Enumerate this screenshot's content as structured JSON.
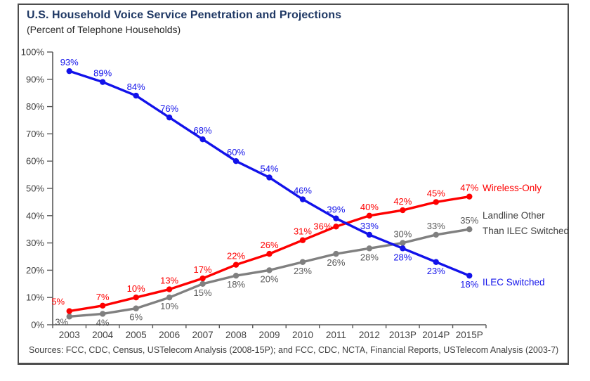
{
  "source_note": "Sources: FCC, CDC, Census, USTelecom Analysis (2008-15P); and FCC, CDC, NCTA, Financial Reports, USTelecom Analysis (2003-7)",
  "colors": {
    "title": "#1f3864",
    "axis_line": "#595959",
    "axis_text": "#404040",
    "blue": "#1212ea",
    "red": "#fe0000",
    "gray": "#808080"
  },
  "chart_data": {
    "type": "line",
    "title": "U.S. Household Voice Service Penetration and Projections",
    "subtitle": "(Percent of Telephone Households)",
    "categories": [
      "2003",
      "2004",
      "2005",
      "2006",
      "2007",
      "2008",
      "2009",
      "2010",
      "2011",
      "2012",
      "2013P",
      "2014P",
      "2015P"
    ],
    "y_tick_labels": [
      "0%",
      "10%",
      "20%",
      "30%",
      "40%",
      "50%",
      "60%",
      "70%",
      "80%",
      "90%",
      "100%"
    ],
    "ylim": [
      0,
      100
    ],
    "grid": false,
    "legend_position": "right",
    "series": [
      {
        "name": "Landline Other Than ILEC Switched",
        "color": "#808080",
        "label_color": "#595959",
        "values": [
          3,
          4,
          6,
          10,
          15,
          18,
          20,
          23,
          26,
          28,
          30,
          33,
          35
        ],
        "label_pos": [
          "below-left",
          "below",
          "below",
          "below",
          "below",
          "below",
          "below",
          "below",
          "below",
          "below",
          "above",
          "above",
          "above"
        ]
      },
      {
        "name": "Wireless-Only",
        "color": "#fe0000",
        "label_color": "#fe0000",
        "values": [
          5,
          7,
          10,
          13,
          17,
          22,
          26,
          31,
          36,
          40,
          42,
          45,
          47
        ],
        "label_pos": [
          "above-left",
          "above",
          "above",
          "above",
          "above",
          "above",
          "above",
          "above",
          "left",
          "above",
          "above",
          "above",
          "above"
        ]
      },
      {
        "name": "ILEC Switched",
        "color": "#1212ea",
        "label_color": "#1212ea",
        "values": [
          93,
          89,
          84,
          76,
          68,
          60,
          54,
          46,
          39,
          33,
          28,
          23,
          18
        ],
        "label_pos": [
          "above",
          "above",
          "above",
          "above",
          "above",
          "above",
          "above",
          "above",
          "above",
          "above",
          "below",
          "below",
          "below"
        ]
      }
    ],
    "legend": [
      {
        "text": "Wireless-Only",
        "color": "#fe0000"
      },
      {
        "text": "Landline Other",
        "color": "#404040"
      },
      {
        "text": "Than ILEC Switched",
        "color": "#404040"
      },
      {
        "text": "ILEC Switched",
        "color": "#1212ea"
      }
    ]
  }
}
